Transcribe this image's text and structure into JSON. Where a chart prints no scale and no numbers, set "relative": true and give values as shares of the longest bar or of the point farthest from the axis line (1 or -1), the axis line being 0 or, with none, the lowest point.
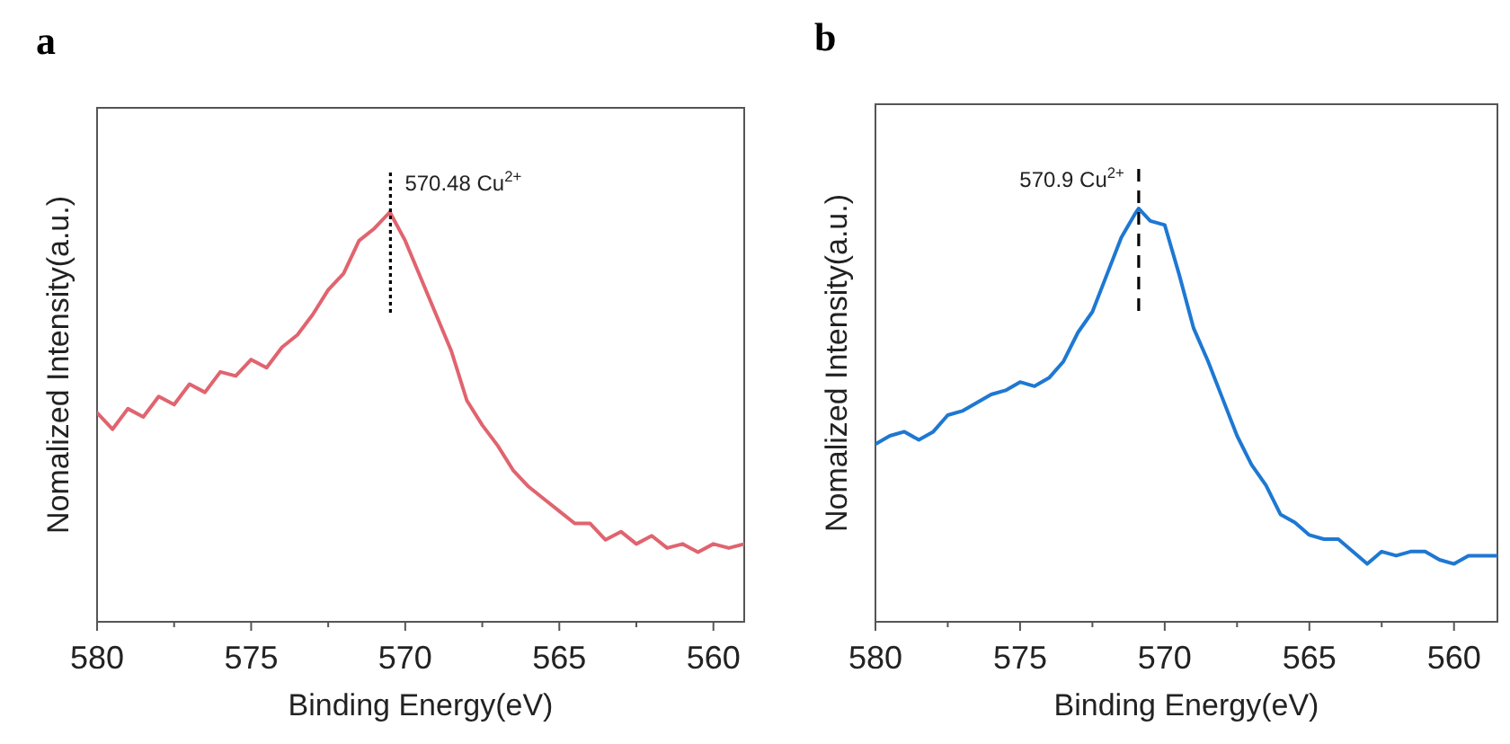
{
  "chart_data": [
    {
      "type": "line",
      "title": "a",
      "xlabel": "Binding Energy(eV)",
      "ylabel": "Nomalized Intensity(a.u.)",
      "relative": true,
      "xlim": [
        580,
        559
      ],
      "xticks": [
        580,
        {
          "value": 577.5,
          "label": null
        },
        575,
        {
          "value": 572.5,
          "label": null
        },
        570,
        {
          "value": 567.5,
          "label": null
        },
        565,
        {
          "value": 562.5,
          "label": null
        },
        560
      ],
      "line_style": "solid",
      "ref_lines": [
        {
          "axis": "x",
          "value": 570.48,
          "label": "570.48 Cu$^{2+}$",
          "line_style": "dotted",
          "color": "#000000"
        }
      ],
      "series": [
        {
          "color": "#e0646f",
          "x": [
            580,
            579.5,
            579,
            578.5,
            578,
            577.5,
            577,
            576.5,
            576,
            575.5,
            575,
            574.5,
            574,
            573.5,
            573,
            572.5,
            572,
            571.5,
            571,
            570.5,
            570,
            569.5,
            569,
            568.5,
            568,
            567.5,
            567,
            566.5,
            566,
            565.5,
            565,
            564.5,
            564,
            563.5,
            563,
            562.5,
            562,
            561.5,
            561,
            560.5,
            560,
            559.5,
            559
          ],
          "values": [
            0.51,
            0.47,
            0.52,
            0.5,
            0.55,
            0.53,
            0.58,
            0.56,
            0.61,
            0.6,
            0.64,
            0.62,
            0.67,
            0.7,
            0.75,
            0.81,
            0.85,
            0.93,
            0.96,
            1.0,
            0.93,
            0.84,
            0.75,
            0.66,
            0.54,
            0.48,
            0.43,
            0.37,
            0.33,
            0.3,
            0.27,
            0.24,
            0.24,
            0.2,
            0.22,
            0.19,
            0.21,
            0.18,
            0.19,
            0.17,
            0.19,
            0.18,
            0.19
          ]
        }
      ]
    },
    {
      "type": "line",
      "title": "b",
      "xlabel": "Binding Energy(eV)",
      "ylabel": "Nomalized Intensity(a.u.)",
      "relative": true,
      "xlim": [
        580,
        558.5
      ],
      "xticks": [
        580,
        {
          "value": 577.5,
          "label": null
        },
        575,
        {
          "value": 572.5,
          "label": null
        },
        570,
        {
          "value": 567.5,
          "label": null
        },
        565,
        {
          "value": 562.5,
          "label": null
        },
        560
      ],
      "line_style": "solid",
      "ref_lines": [
        {
          "axis": "x",
          "value": 570.9,
          "label": "570.9 Cu$^{2+}$",
          "line_style": "dashed",
          "color": "#000000"
        }
      ],
      "series": [
        {
          "color": "#1e78d2",
          "x": [
            580,
            579.5,
            579,
            578.5,
            578,
            577.5,
            577,
            576.5,
            576,
            575.5,
            575,
            574.5,
            574,
            573.5,
            573,
            572.5,
            572,
            571.5,
            571,
            570.9,
            570.5,
            570,
            569.5,
            569,
            568.5,
            568,
            567.5,
            567,
            566.5,
            566,
            565.5,
            565,
            564.5,
            564,
            563.5,
            563,
            562.5,
            562,
            561.5,
            561,
            560.5,
            560,
            559.5,
            559,
            558.5
          ],
          "values": [
            0.43,
            0.45,
            0.46,
            0.44,
            0.46,
            0.5,
            0.51,
            0.53,
            0.55,
            0.56,
            0.58,
            0.57,
            0.59,
            0.63,
            0.7,
            0.75,
            0.84,
            0.93,
            0.99,
            1.0,
            0.97,
            0.96,
            0.84,
            0.71,
            0.63,
            0.54,
            0.45,
            0.38,
            0.33,
            0.26,
            0.24,
            0.21,
            0.2,
            0.2,
            0.17,
            0.14,
            0.17,
            0.16,
            0.17,
            0.17,
            0.15,
            0.14,
            0.16,
            0.16,
            0.16
          ]
        }
      ]
    }
  ]
}
